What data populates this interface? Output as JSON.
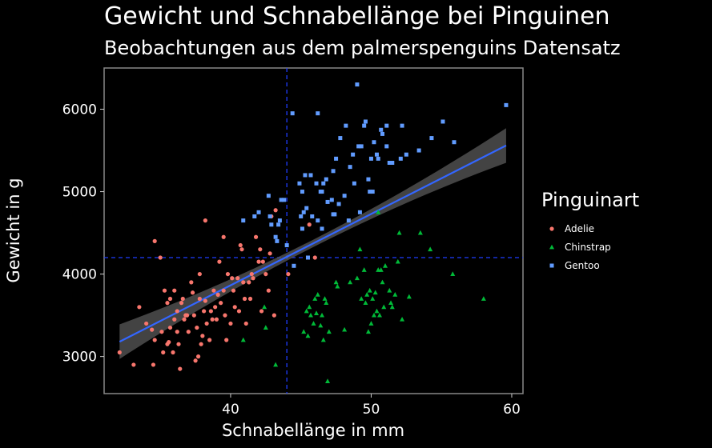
{
  "chart_data": {
    "type": "scatter",
    "title": "Gewicht und Schnabellänge bei Pinguinen",
    "subtitle": "Beobachtungen aus dem palmerspenguins Datensatz",
    "xlabel": "Schnabellänge in mm",
    "ylabel": "Gewicht in g",
    "xlim": [
      31,
      60.8
    ],
    "ylim": [
      2550,
      6500
    ],
    "xticks": [
      40,
      50,
      60
    ],
    "yticks": [
      3000,
      4000,
      5000,
      6000
    ],
    "grid": false,
    "legend_title": "Pinguinart",
    "legend_position": "right",
    "reference_lines": {
      "x": 44.0,
      "y": 4200
    },
    "trend": {
      "type": "linear",
      "x": [
        32.1,
        59.6
      ],
      "y": [
        3180,
        5560
      ],
      "ci_half_width_ends": 210,
      "ci_half_width_mid": 45,
      "color": "#3366ff"
    },
    "series": [
      {
        "name": "Adelie",
        "color": "#f8766d",
        "shape": "circle",
        "points": [
          [
            32.1,
            3050
          ],
          [
            33.1,
            2900
          ],
          [
            33.5,
            3600
          ],
          [
            34.0,
            3400
          ],
          [
            34.4,
            3325
          ],
          [
            34.5,
            2900
          ],
          [
            34.6,
            4400
          ],
          [
            34.6,
            3200
          ],
          [
            35.0,
            4200
          ],
          [
            35.1,
            3300
          ],
          [
            35.2,
            3050
          ],
          [
            35.3,
            3800
          ],
          [
            35.5,
            3150
          ],
          [
            35.5,
            3650
          ],
          [
            35.6,
            3175
          ],
          [
            35.7,
            3350
          ],
          [
            35.9,
            3050
          ],
          [
            36.0,
            3450
          ],
          [
            36.0,
            3800
          ],
          [
            36.2,
            3550
          ],
          [
            36.2,
            3300
          ],
          [
            36.3,
            3150
          ],
          [
            36.4,
            2850
          ],
          [
            36.5,
            3650
          ],
          [
            36.6,
            3700
          ],
          [
            36.7,
            3450
          ],
          [
            36.8,
            3500
          ],
          [
            36.9,
            3500
          ],
          [
            37.0,
            3300
          ],
          [
            37.2,
            3900
          ],
          [
            37.3,
            3775
          ],
          [
            37.4,
            3500
          ],
          [
            37.5,
            2950
          ],
          [
            37.6,
            3350
          ],
          [
            37.7,
            3000
          ],
          [
            37.8,
            3700
          ],
          [
            37.9,
            3150
          ],
          [
            38.0,
            3250
          ],
          [
            38.1,
            3550
          ],
          [
            38.2,
            3675
          ],
          [
            38.3,
            3400
          ],
          [
            38.5,
            3200
          ],
          [
            38.6,
            3550
          ],
          [
            38.7,
            3450
          ],
          [
            38.8,
            3800
          ],
          [
            38.9,
            3600
          ],
          [
            39.0,
            3450
          ],
          [
            39.1,
            3750
          ],
          [
            39.2,
            4150
          ],
          [
            39.3,
            3650
          ],
          [
            39.5,
            3800
          ],
          [
            39.6,
            3500
          ],
          [
            39.7,
            3200
          ],
          [
            39.8,
            4000
          ],
          [
            40.0,
            3400
          ],
          [
            40.1,
            3950
          ],
          [
            40.2,
            3800
          ],
          [
            40.3,
            3600
          ],
          [
            40.5,
            3950
          ],
          [
            40.6,
            3550
          ],
          [
            40.7,
            4350
          ],
          [
            40.8,
            4300
          ],
          [
            40.9,
            3900
          ],
          [
            41.0,
            3700
          ],
          [
            41.1,
            3400
          ],
          [
            41.3,
            3900
          ],
          [
            41.4,
            3700
          ],
          [
            41.5,
            4000
          ],
          [
            41.6,
            3950
          ],
          [
            41.8,
            4450
          ],
          [
            42.0,
            4150
          ],
          [
            42.1,
            4300
          ],
          [
            42.2,
            3550
          ],
          [
            42.3,
            4150
          ],
          [
            42.5,
            4000
          ],
          [
            42.7,
            3800
          ],
          [
            42.8,
            4250
          ],
          [
            42.9,
            4700
          ],
          [
            43.2,
            4775
          ],
          [
            43.1,
            3500
          ],
          [
            44.1,
            4000
          ],
          [
            45.6,
            4600
          ],
          [
            46.0,
            4200
          ],
          [
            38.2,
            4650
          ],
          [
            37.8,
            4000
          ],
          [
            39.5,
            4450
          ],
          [
            35.7,
            3700
          ]
        ]
      },
      {
        "name": "Chinstrap",
        "color": "#00ba38",
        "shape": "triangle",
        "points": [
          [
            40.9,
            3200
          ],
          [
            42.4,
            3600
          ],
          [
            42.5,
            3350
          ],
          [
            43.2,
            2900
          ],
          [
            45.2,
            3300
          ],
          [
            45.4,
            3550
          ],
          [
            45.5,
            3250
          ],
          [
            45.6,
            3600
          ],
          [
            45.7,
            3500
          ],
          [
            45.9,
            3400
          ],
          [
            46.0,
            3700
          ],
          [
            46.1,
            3525
          ],
          [
            46.2,
            3750
          ],
          [
            46.4,
            3375
          ],
          [
            46.5,
            3500
          ],
          [
            46.6,
            3200
          ],
          [
            46.7,
            3700
          ],
          [
            46.8,
            3650
          ],
          [
            46.9,
            2700
          ],
          [
            47.0,
            3300
          ],
          [
            47.5,
            3900
          ],
          [
            47.6,
            3850
          ],
          [
            48.1,
            3325
          ],
          [
            48.5,
            3900
          ],
          [
            49.0,
            3950
          ],
          [
            49.2,
            4300
          ],
          [
            49.3,
            3700
          ],
          [
            49.5,
            4050
          ],
          [
            49.6,
            3650
          ],
          [
            49.7,
            3750
          ],
          [
            49.8,
            3300
          ],
          [
            49.9,
            3800
          ],
          [
            50.0,
            3400
          ],
          [
            50.1,
            3700
          ],
          [
            50.2,
            3500
          ],
          [
            50.3,
            3775
          ],
          [
            50.4,
            3550
          ],
          [
            50.5,
            4050
          ],
          [
            50.6,
            3500
          ],
          [
            50.7,
            4050
          ],
          [
            50.8,
            3900
          ],
          [
            50.9,
            3600
          ],
          [
            51.0,
            4100
          ],
          [
            51.3,
            3800
          ],
          [
            51.4,
            3650
          ],
          [
            51.5,
            3600
          ],
          [
            51.7,
            3750
          ],
          [
            52.0,
            4500
          ],
          [
            52.2,
            3450
          ],
          [
            52.7,
            3725
          ],
          [
            53.5,
            4500
          ],
          [
            54.2,
            4300
          ],
          [
            55.8,
            4000
          ],
          [
            58.0,
            3700
          ],
          [
            50.5,
            4750
          ],
          [
            51.9,
            4150
          ]
        ]
      },
      {
        "name": "Gentoo",
        "color": "#619cff",
        "shape": "square",
        "points": [
          [
            40.9,
            4650
          ],
          [
            41.7,
            4700
          ],
          [
            42.0,
            4750
          ],
          [
            42.7,
            4950
          ],
          [
            42.8,
            4700
          ],
          [
            42.9,
            4600
          ],
          [
            43.2,
            4450
          ],
          [
            43.3,
            4400
          ],
          [
            43.4,
            4600
          ],
          [
            43.5,
            4650
          ],
          [
            43.6,
            4900
          ],
          [
            44.0,
            4350
          ],
          [
            44.5,
            4100
          ],
          [
            44.9,
            5100
          ],
          [
            45.0,
            4700
          ],
          [
            45.1,
            5000
          ],
          [
            45.2,
            4750
          ],
          [
            45.3,
            5200
          ],
          [
            45.4,
            4800
          ],
          [
            45.5,
            4200
          ],
          [
            45.7,
            5200
          ],
          [
            45.8,
            4700
          ],
          [
            46.1,
            5100
          ],
          [
            46.2,
            4650
          ],
          [
            46.4,
            5000
          ],
          [
            46.5,
            4550
          ],
          [
            46.6,
            5100
          ],
          [
            46.8,
            5150
          ],
          [
            46.9,
            4875
          ],
          [
            47.2,
            4900
          ],
          [
            47.3,
            4725
          ],
          [
            47.4,
            4725
          ],
          [
            47.5,
            5400
          ],
          [
            47.7,
            4850
          ],
          [
            47.8,
            5650
          ],
          [
            48.1,
            4950
          ],
          [
            48.2,
            5800
          ],
          [
            48.4,
            4650
          ],
          [
            48.5,
            5300
          ],
          [
            48.7,
            5450
          ],
          [
            48.8,
            5100
          ],
          [
            49.0,
            6300
          ],
          [
            49.1,
            5550
          ],
          [
            49.2,
            4750
          ],
          [
            49.3,
            5550
          ],
          [
            49.5,
            5800
          ],
          [
            49.6,
            5850
          ],
          [
            49.8,
            5150
          ],
          [
            50.0,
            5400
          ],
          [
            50.1,
            5000
          ],
          [
            50.2,
            5600
          ],
          [
            50.4,
            5450
          ],
          [
            50.5,
            5400
          ],
          [
            50.7,
            5750
          ],
          [
            50.8,
            5700
          ],
          [
            51.1,
            5800
          ],
          [
            51.3,
            5350
          ],
          [
            51.5,
            5350
          ],
          [
            52.1,
            5400
          ],
          [
            52.2,
            5800
          ],
          [
            52.5,
            5450
          ],
          [
            53.4,
            5500
          ],
          [
            54.3,
            5650
          ],
          [
            55.1,
            5850
          ],
          [
            55.9,
            5600
          ],
          [
            59.6,
            6050
          ],
          [
            44.4,
            5950
          ],
          [
            46.2,
            5950
          ],
          [
            49.9,
            5000
          ],
          [
            45.1,
            4550
          ],
          [
            46.5,
            5000
          ],
          [
            47.3,
            5250
          ],
          [
            43.8,
            4900
          ],
          [
            51.1,
            5550
          ]
        ]
      }
    ]
  }
}
